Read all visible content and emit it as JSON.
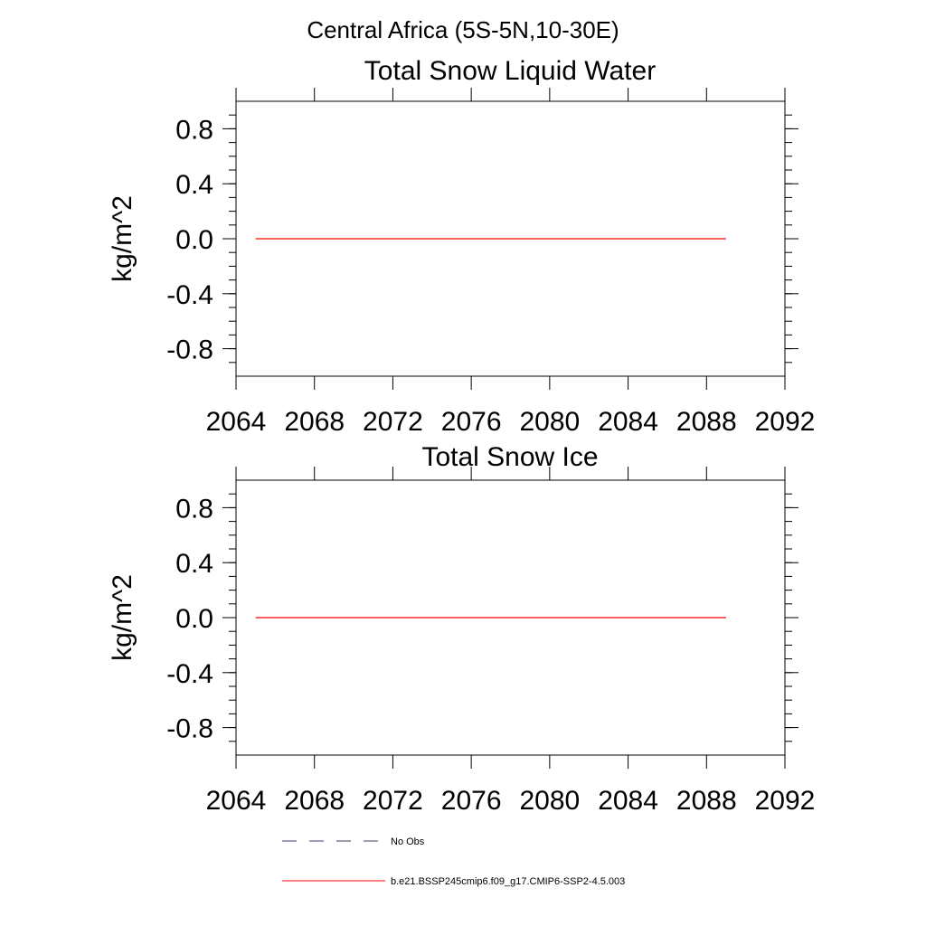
{
  "suptitle": "Central Africa (5S-5N,10-30E)",
  "chart_data": [
    {
      "type": "line",
      "title": "Total Snow Liquid Water",
      "xlabel": "",
      "ylabel": "kg/m^2",
      "xlim": [
        2064,
        2092
      ],
      "ylim": [
        -1,
        1
      ],
      "x_ticks": [
        2064,
        2068,
        2072,
        2076,
        2080,
        2084,
        2088,
        2092
      ],
      "x_tick_labels": [
        "2064",
        "2068",
        "2072",
        "2076",
        "2080",
        "2084",
        "2088",
        "2092"
      ],
      "y_ticks": [
        0.8,
        0.4,
        0.0,
        -0.4,
        -0.8
      ],
      "y_tick_labels": [
        "0.8",
        "0.4",
        "0.0",
        "-0.4",
        "-0.8"
      ],
      "grid": false,
      "series": [
        {
          "name": "b.e21.BSSP245cmip6.f09_g17.CMIP6-SSP2-4.5.003",
          "color": "#ff0000",
          "x": [
            2065,
            2089
          ],
          "y": [
            0,
            0
          ]
        }
      ]
    },
    {
      "type": "line",
      "title": "Total Snow Ice",
      "xlabel": "",
      "ylabel": "kg/m^2",
      "xlim": [
        2064,
        2092
      ],
      "ylim": [
        -1,
        1
      ],
      "x_ticks": [
        2064,
        2068,
        2072,
        2076,
        2080,
        2084,
        2088,
        2092
      ],
      "x_tick_labels": [
        "2064",
        "2068",
        "2072",
        "2076",
        "2080",
        "2084",
        "2088",
        "2092"
      ],
      "y_ticks": [
        0.8,
        0.4,
        0.0,
        -0.4,
        -0.8
      ],
      "y_tick_labels": [
        "0.8",
        "0.4",
        "0.0",
        "-0.4",
        "-0.8"
      ],
      "grid": false,
      "series": [
        {
          "name": "b.e21.BSSP245cmip6.f09_g17.CMIP6-SSP2-4.5.003",
          "color": "#ff0000",
          "x": [
            2065,
            2089
          ],
          "y": [
            0,
            0
          ]
        }
      ]
    }
  ],
  "legend": {
    "placement": "bottom-center",
    "items": [
      {
        "label": "No Obs",
        "color": "#3a3a6e",
        "style": "dashed"
      },
      {
        "label": "b.e21.BSSP245cmip6.f09_g17.CMIP6-SSP2-4.5.003",
        "color": "#ff0000",
        "style": "solid"
      }
    ]
  }
}
